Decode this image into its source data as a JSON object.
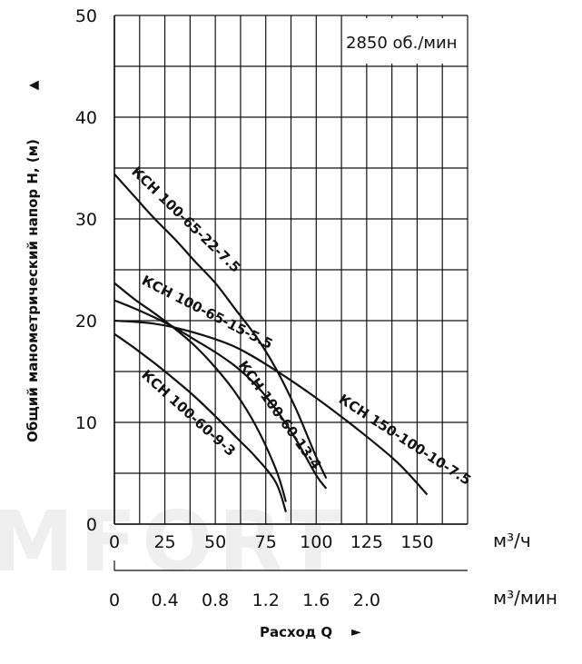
{
  "chart_data": {
    "type": "line",
    "watermark": "MFORT",
    "speed_note": "2850 об./мин",
    "ylabel": "Общий манометрический напор Н, (м)",
    "ylabel_arrow": "▲",
    "xlabel": "Расход Q",
    "xlabel_arrow": "►",
    "x_unit_primary": "м³/ч",
    "x_unit_secondary": "м³/мин",
    "ylim": [
      0,
      50
    ],
    "xlim": [
      0,
      175
    ],
    "y_ticks": [
      0,
      10,
      20,
      30,
      40,
      50
    ],
    "x_ticks": [
      0,
      25,
      50,
      75,
      100,
      125,
      150
    ],
    "x_ticks_secondary": [
      {
        "label": "0",
        "value": 0
      },
      {
        "label": "0.4",
        "value": 25
      },
      {
        "label": "0.8",
        "value": 50
      },
      {
        "label": "1.2",
        "value": 75
      },
      {
        "label": "1.6",
        "value": 100
      },
      {
        "label": "2.0",
        "value": 125
      }
    ],
    "grid": true,
    "series": [
      {
        "name": "КСН 100-65-22-7.5",
        "x": [
          0,
          10,
          20,
          30,
          40,
          50,
          60,
          70,
          80,
          90,
          100,
          105
        ],
        "y": [
          34.4,
          32.2,
          30,
          28,
          25.8,
          23.7,
          21.1,
          18.5,
          15.3,
          11.3,
          6.6,
          4.5
        ]
      },
      {
        "name": "КСН 100-65-15-5.5",
        "x": [
          0,
          10,
          20,
          30,
          40,
          50,
          60,
          70,
          80,
          90,
          100,
          105
        ],
        "y": [
          22,
          21.2,
          20.3,
          19.3,
          18.1,
          16.9,
          15.5,
          13.7,
          11.3,
          8.3,
          4.8,
          3.5
        ]
      },
      {
        "name": "КСН 100-60-13-4",
        "x": [
          0,
          10,
          20,
          30,
          40,
          50,
          60,
          70,
          80,
          85
        ],
        "y": [
          23.7,
          22.1,
          20.7,
          19.2,
          17.5,
          15.4,
          12.9,
          9.7,
          5.4,
          2.2
        ]
      },
      {
        "name": "КСН 100-60-9-3",
        "x": [
          0,
          10,
          20,
          30,
          40,
          50,
          60,
          70,
          80,
          85
        ],
        "y": [
          18.7,
          17.3,
          15.8,
          14.2,
          12.5,
          10.6,
          8.6,
          6.6,
          4.1,
          1.2
        ]
      },
      {
        "name": "КСН 150-100-10-7.5",
        "x": [
          0,
          20,
          40,
          60,
          80,
          100,
          120,
          140,
          155
        ],
        "y": [
          20,
          19.7,
          18.8,
          17.4,
          15.1,
          12.4,
          9.4,
          6.1,
          2.9
        ]
      }
    ]
  }
}
